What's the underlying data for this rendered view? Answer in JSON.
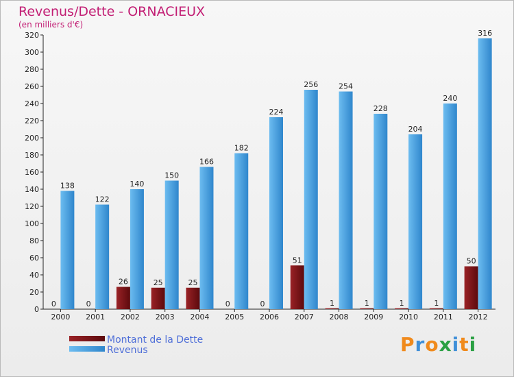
{
  "chart_data": {
    "type": "bar",
    "title": "Revenus/Dette - ORNACIEUX",
    "subtitle": "(en milliers d'€)",
    "categories": [
      "2000",
      "2001",
      "2002",
      "2003",
      "2004",
      "2005",
      "2006",
      "2007",
      "2008",
      "2009",
      "2010",
      "2011",
      "2012"
    ],
    "series": [
      {
        "name": "Montant de la Dette",
        "color": "#7a0f12",
        "values": [
          0,
          0,
          26,
          25,
          25,
          0,
          0,
          51,
          1,
          1,
          1,
          1,
          50
        ]
      },
      {
        "name": "Revenus",
        "color": "#4ea5e2",
        "values": [
          138,
          122,
          140,
          150,
          166,
          182,
          224,
          256,
          254,
          228,
          204,
          240,
          316
        ]
      }
    ],
    "ylim": [
      0,
      320
    ],
    "yticks": [
      0,
      20,
      40,
      60,
      80,
      100,
      120,
      140,
      160,
      180,
      200,
      220,
      240,
      260,
      280,
      300,
      320
    ],
    "grid": false,
    "legend": "bottom-left"
  },
  "logo": {
    "text": "Proxiti",
    "letters": [
      "P",
      "r",
      "o",
      "x",
      "i",
      "t",
      "i"
    ],
    "colors": [
      "#f08a1c",
      "#3f8fd8",
      "#f08a1c",
      "#2aa043",
      "#3f8fd8",
      "#f08a1c",
      "#2aa043"
    ]
  }
}
